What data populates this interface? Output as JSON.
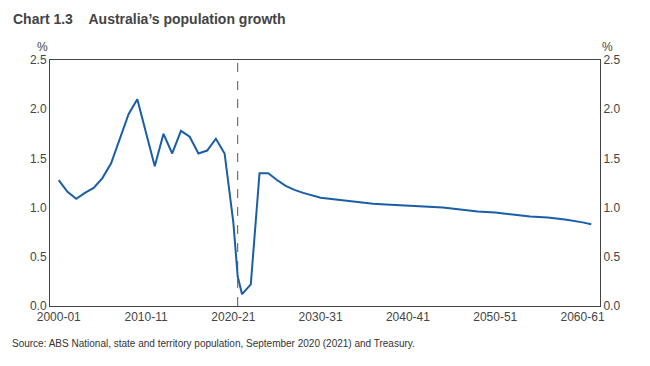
{
  "chart_data": {
    "type": "line",
    "title": "Chart 1.3",
    "subtitle": "Australia’s population growth",
    "annotations": [
      "Source: ABS National, state and territory population, September 2020 (2021) and Treasury."
    ],
    "ylabel": "%",
    "y2label": "%",
    "color": "#1a5ea8",
    "grid": false,
    "vline_x": 2020.5,
    "x": [
      2000,
      2001,
      2002,
      2003,
      2004,
      2005,
      2006,
      2007,
      2008,
      2009,
      2010,
      2011,
      2012,
      2013,
      2014,
      2015,
      2016,
      2017,
      2018,
      2019,
      2020,
      2020.5,
      2021,
      2022,
      2023,
      2024,
      2025,
      2026,
      2027,
      2028,
      2030,
      2032,
      2034,
      2036,
      2038,
      2040,
      2042,
      2044,
      2046,
      2048,
      2050,
      2052,
      2054,
      2056,
      2058,
      2060,
      2061
    ],
    "values": [
      1.28,
      1.16,
      1.09,
      1.15,
      1.2,
      1.3,
      1.45,
      1.7,
      1.95,
      2.1,
      1.75,
      1.42,
      1.75,
      1.55,
      1.78,
      1.72,
      1.55,
      1.58,
      1.7,
      1.55,
      0.85,
      0.3,
      0.12,
      0.22,
      1.35,
      1.35,
      1.28,
      1.22,
      1.18,
      1.15,
      1.1,
      1.08,
      1.06,
      1.04,
      1.03,
      1.02,
      1.01,
      1.0,
      0.98,
      0.96,
      0.95,
      0.93,
      0.91,
      0.9,
      0.88,
      0.85,
      0.83
    ],
    "xlim": [
      1999,
      2062
    ],
    "xticks": [
      {
        "value": 2000,
        "label": "2000-01"
      },
      {
        "value": 2010,
        "label": "2010-11"
      },
      {
        "value": 2020,
        "label": "2020-21"
      },
      {
        "value": 2030,
        "label": "2030-31"
      },
      {
        "value": 2040,
        "label": "2040-41"
      },
      {
        "value": 2050,
        "label": "2050-51"
      },
      {
        "value": 2060,
        "label": "2060-61"
      }
    ],
    "ylim": [
      0.0,
      2.5
    ],
    "yticks": [
      {
        "value": 0.0,
        "label": "0.0"
      },
      0.5,
      {
        "value": 1.0,
        "label": "1.0"
      },
      1.5,
      {
        "value": 2.0,
        "label": "2.0"
      },
      2.5
    ],
    "y2lim": [
      0.0,
      2.5
    ],
    "y2ticks": [
      {
        "value": 0.0,
        "label": "0.0"
      },
      0.5,
      {
        "value": 1.0,
        "label": "1.0"
      },
      1.5,
      {
        "value": 2.0,
        "label": "2.0"
      },
      2.5
    ]
  }
}
